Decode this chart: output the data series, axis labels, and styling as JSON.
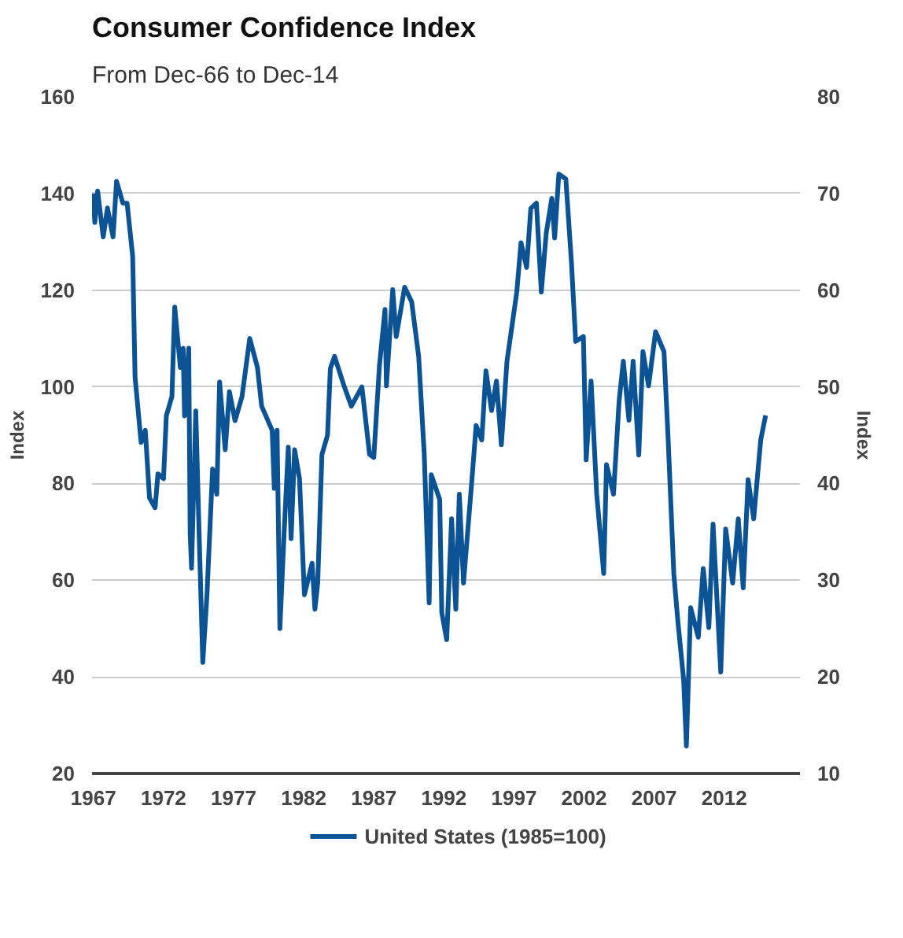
{
  "chart_data": {
    "type": "line",
    "title": "Consumer Confidence Index",
    "subtitle": "From Dec-66 to Dec-14",
    "ylabel": "Index",
    "y2label": "Index",
    "xlim": [
      1966.9,
      2017.4
    ],
    "xticks": [
      1967,
      1972,
      1977,
      1982,
      1987,
      1992,
      1997,
      2002,
      2007,
      2012
    ],
    "ylim": [
      20,
      160
    ],
    "yticks": [
      20,
      40,
      60,
      80,
      100,
      120,
      140,
      160
    ],
    "y2lim": [
      10,
      80
    ],
    "y2ticks": [
      10,
      20,
      30,
      40,
      50,
      60,
      70,
      80
    ],
    "grid": "y",
    "legend": "bottom",
    "line_style": "solid",
    "series": [
      {
        "name": "United States (1985=100)",
        "color": "#0b5394",
        "x": [
          1966.95,
          1967.1,
          1967.3,
          1967.7,
          1968.0,
          1968.4,
          1968.65,
          1969.1,
          1969.4,
          1969.8,
          1969.97,
          1970.4,
          1970.7,
          1971.0,
          1971.4,
          1971.6,
          1972.0,
          1972.2,
          1972.6,
          1972.8,
          1973.2,
          1973.4,
          1973.5,
          1973.8,
          1973.9,
          1974.0,
          1974.3,
          1974.5,
          1974.8,
          1975.1,
          1975.5,
          1975.8,
          1976.0,
          1976.4,
          1976.7,
          1977.1,
          1977.6,
          1978.15,
          1978.7,
          1979.0,
          1979.75,
          1979.9,
          1980.1,
          1980.3,
          1980.6,
          1980.9,
          1981.1,
          1981.35,
          1981.7,
          1982.05,
          1982.6,
          1982.8,
          1983.0,
          1983.3,
          1983.7,
          1983.9,
          1984.2,
          1984.9,
          1985.4,
          1986.15,
          1986.7,
          1987.0,
          1987.4,
          1987.8,
          1987.9,
          1988.35,
          1988.6,
          1989.2,
          1989.7,
          1990.2,
          1990.6,
          1990.95,
          1991.1,
          1991.7,
          1991.85,
          1992.2,
          1992.55,
          1992.85,
          1993.1,
          1993.4,
          1994.0,
          1994.3,
          1994.7,
          1995.0,
          1995.4,
          1995.75,
          1996.1,
          1996.5,
          1996.8,
          1997.2,
          1997.5,
          1997.9,
          1998.2,
          1998.6,
          1998.95,
          1999.3,
          1999.7,
          1999.9,
          2000.2,
          2000.7,
          2001.1,
          2001.4,
          2001.95,
          2002.15,
          2002.5,
          2002.9,
          2003.4,
          2003.6,
          2004.1,
          2004.5,
          2004.8,
          2005.2,
          2005.5,
          2005.9,
          2006.2,
          2006.6,
          2007.1,
          2007.7,
          2008.0,
          2008.4,
          2008.7,
          2009.1,
          2009.3,
          2009.6,
          2010.15,
          2010.5,
          2010.9,
          2011.2,
          2011.75,
          2012.1,
          2012.6,
          2013.0,
          2013.35,
          2013.7,
          2014.1,
          2014.6,
          2014.95
        ],
        "values": [
          140,
          134,
          140.5,
          131,
          137,
          131,
          142.5,
          138,
          138,
          127,
          102,
          88.5,
          91,
          77,
          75,
          82,
          81,
          94,
          98,
          116.5,
          104,
          108,
          94,
          108,
          69.6,
          62.5,
          95,
          73.7,
          43,
          57,
          83,
          77.8,
          101,
          87,
          99,
          93,
          98,
          110,
          104,
          96,
          91,
          79,
          91,
          50,
          69.6,
          87.5,
          68.6,
          87,
          81,
          57,
          63.5,
          54,
          59.4,
          86,
          90,
          103.8,
          106.3,
          100,
          96,
          100,
          86,
          85.4,
          104.3,
          116,
          100.2,
          120.1,
          110.4,
          120.6,
          117.6,
          106.3,
          86,
          55.3,
          81.8,
          76.7,
          53.3,
          47.7,
          72.7,
          54,
          77.8,
          59.4,
          80.8,
          92,
          89,
          103.3,
          95.1,
          101.2,
          88,
          105.3,
          111.4,
          119.6,
          129.8,
          124.7,
          136.9,
          138,
          119.6,
          131.8,
          139,
          130.8,
          144,
          143,
          125.7,
          109.4,
          110.4,
          84.9,
          101.2,
          77.8,
          61.4,
          83.9,
          77.8,
          97.1,
          105.3,
          93.1,
          105.3,
          85.9,
          107.3,
          100.2,
          111.4,
          107.3,
          89,
          61.4,
          51.2,
          39.5,
          25.7,
          54.3,
          48.2,
          62.4,
          50.2,
          71.6,
          41,
          70.6,
          59.4,
          72.7,
          58.4,
          80.8,
          72.7,
          89,
          94.1
        ]
      }
    ]
  }
}
